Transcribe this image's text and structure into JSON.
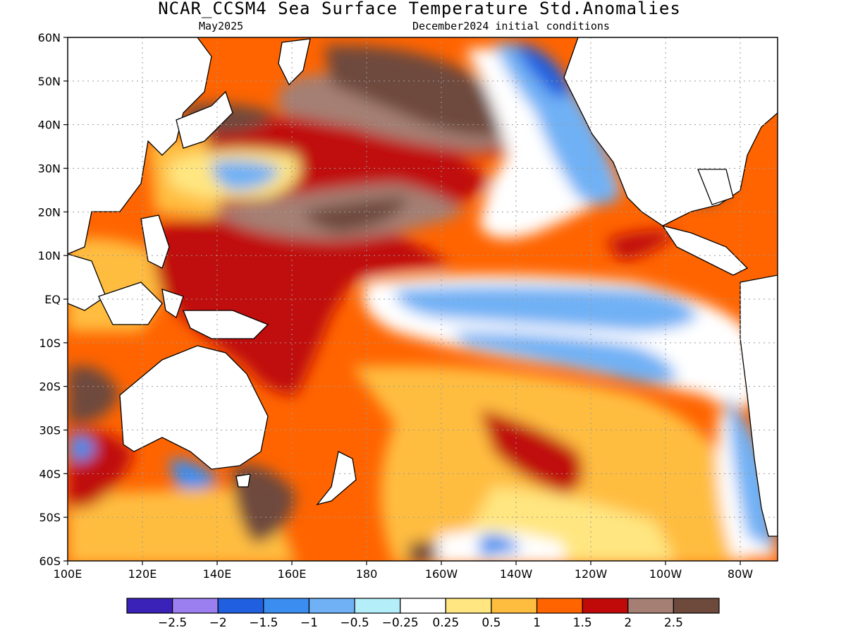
{
  "title": "NCAR_CCSM4 Sea Surface Temperature Std.Anomalies",
  "valid_month": "May2025",
  "init_conditions": "December2024 initial conditions",
  "lat_ticks": [
    "60N",
    "50N",
    "40N",
    "30N",
    "20N",
    "10N",
    "EQ",
    "10S",
    "20S",
    "30S",
    "40S",
    "50S",
    "60S"
  ],
  "lon_ticks": [
    "100E",
    "120E",
    "140E",
    "160E",
    "180",
    "160W",
    "140W",
    "120W",
    "100W",
    "80W"
  ],
  "colorbar": {
    "colors": [
      "#3a22b8",
      "#9b7ef0",
      "#1f5fe0",
      "#3b8ef0",
      "#70b1f5",
      "#b4eef9",
      "#ffffff",
      "#ffe680",
      "#ffbd40",
      "#ff6400",
      "#c00a0a",
      "#a57f73",
      "#6e4a3c"
    ],
    "labels": [
      "−2.5",
      "−2",
      "−1.5",
      "−1",
      "−0.5",
      "−0.25",
      "0.25",
      "0.5",
      "1",
      "1.5",
      "2",
      "2.5"
    ]
  }
}
